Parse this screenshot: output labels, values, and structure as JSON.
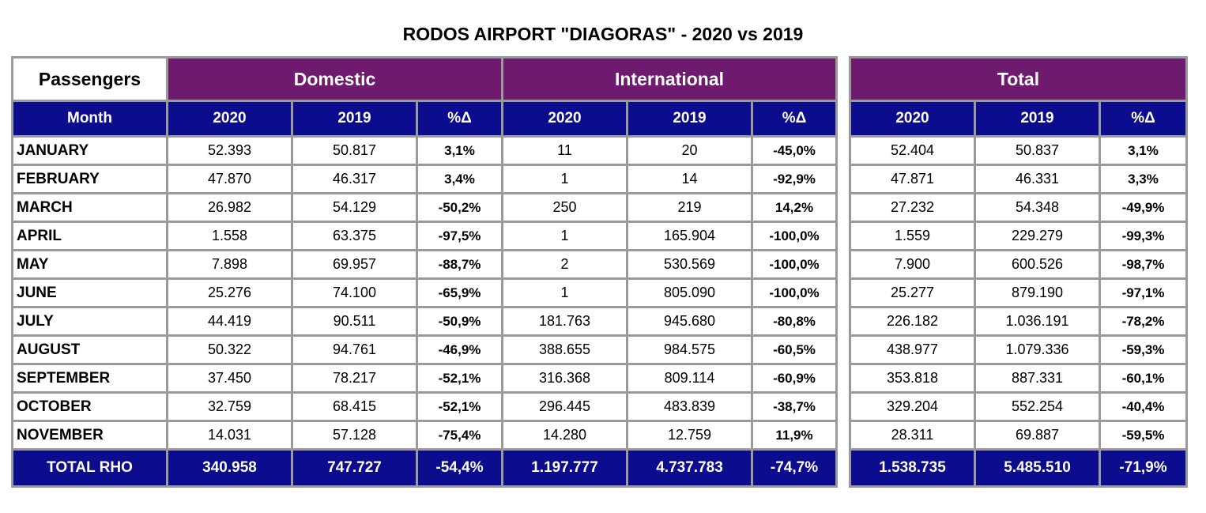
{
  "title": "RODOS AIRPORT \"DIAGORAS\" - 2020 vs 2019",
  "headers": {
    "passengers": "Passengers",
    "domestic": "Domestic",
    "international": "International",
    "total": "Total",
    "month": "Month",
    "y2020": "2020",
    "y2019": "2019",
    "pct": "%Δ"
  },
  "rows": [
    {
      "month": "JANUARY",
      "d20": "52.393",
      "d19": "50.817",
      "dp": "3,1%",
      "i20": "11",
      "i19": "20",
      "ip": "-45,0%",
      "t20": "52.404",
      "t19": "50.837",
      "tp": "3,1%"
    },
    {
      "month": "FEBRUARY",
      "d20": "47.870",
      "d19": "46.317",
      "dp": "3,4%",
      "i20": "1",
      "i19": "14",
      "ip": "-92,9%",
      "t20": "47.871",
      "t19": "46.331",
      "tp": "3,3%"
    },
    {
      "month": "MARCH",
      "d20": "26.982",
      "d19": "54.129",
      "dp": "-50,2%",
      "i20": "250",
      "i19": "219",
      "ip": "14,2%",
      "t20": "27.232",
      "t19": "54.348",
      "tp": "-49,9%"
    },
    {
      "month": "APRIL",
      "d20": "1.558",
      "d19": "63.375",
      "dp": "-97,5%",
      "i20": "1",
      "i19": "165.904",
      "ip": "-100,0%",
      "t20": "1.559",
      "t19": "229.279",
      "tp": "-99,3%"
    },
    {
      "month": "MAY",
      "d20": "7.898",
      "d19": "69.957",
      "dp": "-88,7%",
      "i20": "2",
      "i19": "530.569",
      "ip": "-100,0%",
      "t20": "7.900",
      "t19": "600.526",
      "tp": "-98,7%"
    },
    {
      "month": "JUNE",
      "d20": "25.276",
      "d19": "74.100",
      "dp": "-65,9%",
      "i20": "1",
      "i19": "805.090",
      "ip": "-100,0%",
      "t20": "25.277",
      "t19": "879.190",
      "tp": "-97,1%"
    },
    {
      "month": "JULY",
      "d20": "44.419",
      "d19": "90.511",
      "dp": "-50,9%",
      "i20": "181.763",
      "i19": "945.680",
      "ip": "-80,8%",
      "t20": "226.182",
      "t19": "1.036.191",
      "tp": "-78,2%"
    },
    {
      "month": "AUGUST",
      "d20": "50.322",
      "d19": "94.761",
      "dp": "-46,9%",
      "i20": "388.655",
      "i19": "984.575",
      "ip": "-60,5%",
      "t20": "438.977",
      "t19": "1.079.336",
      "tp": "-59,3%"
    },
    {
      "month": "SEPTEMBER",
      "d20": "37.450",
      "d19": "78.217",
      "dp": "-52,1%",
      "i20": "316.368",
      "i19": "809.114",
      "ip": "-60,9%",
      "t20": "353.818",
      "t19": "887.331",
      "tp": "-60,1%"
    },
    {
      "month": "OCTOBER",
      "d20": "32.759",
      "d19": "68.415",
      "dp": "-52,1%",
      "i20": "296.445",
      "i19": "483.839",
      "ip": "-38,7%",
      "t20": "329.204",
      "t19": "552.254",
      "tp": "-40,4%"
    },
    {
      "month": "NOVEMBER",
      "d20": "14.031",
      "d19": "57.128",
      "dp": "-75,4%",
      "i20": "14.280",
      "i19": "12.759",
      "ip": "11,9%",
      "t20": "28.311",
      "t19": "69.887",
      "tp": "-59,5%"
    }
  ],
  "total": {
    "label": "TOTAL RHO",
    "d20": "340.958",
    "d19": "747.727",
    "dp": "-54,4%",
    "i20": "1.197.777",
    "i19": "4.737.783",
    "ip": "-74,7%",
    "t20": "1.538.735",
    "t19": "5.485.510",
    "tp": "-71,9%"
  },
  "colors": {
    "purple_header": "#6e1a6e",
    "navy_header": "#0c0c8f",
    "grid": "#9a9a9a"
  }
}
